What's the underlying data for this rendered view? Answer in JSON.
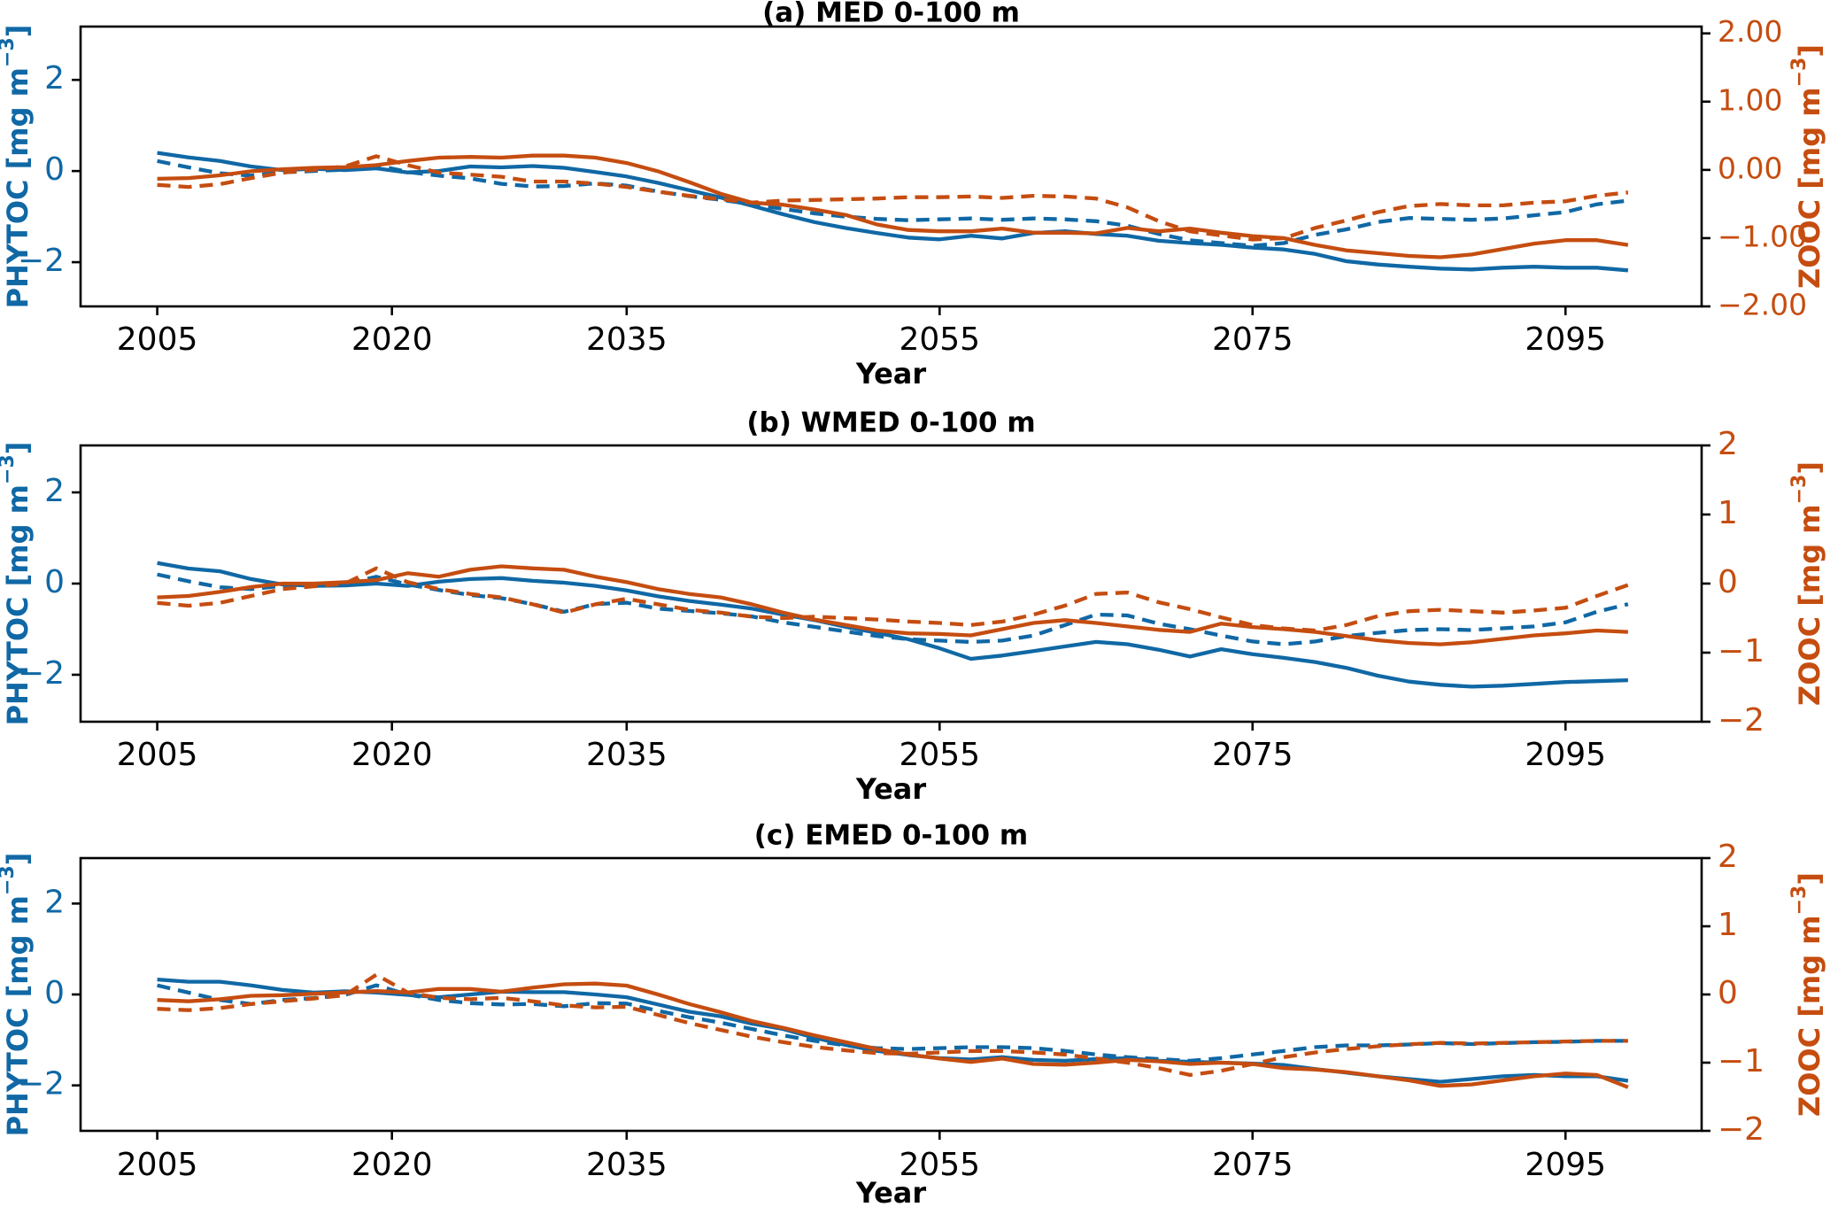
{
  "figure": {
    "background": "#ffffff",
    "xlabel": "Year",
    "ylabel_left": {
      "pre": "PHYTOC [mg m",
      "sup": "−3",
      "post": "]",
      "full": "PHYTOC [mg m^-3]"
    },
    "ylabel_right": {
      "pre": "ZOOC [mg m",
      "sup": "−3",
      "post": "]",
      "full": "ZOOC [mg m^-3]"
    }
  },
  "colors": {
    "phytoc_blue": "#1068a5",
    "zooc_orange": "#c54d10",
    "axis_black": "#000000",
    "background": "#ffffff"
  },
  "chart_data": {
    "type": "line",
    "x_years": [
      2005,
      2007,
      2009,
      2011,
      2013,
      2015,
      2017,
      2019,
      2021,
      2023,
      2025,
      2027,
      2029,
      2031,
      2033,
      2035,
      2037,
      2039,
      2041,
      2043,
      2045,
      2047,
      2049,
      2051,
      2053,
      2055,
      2057,
      2059,
      2061,
      2063,
      2065,
      2067,
      2069,
      2071,
      2073,
      2075,
      2077,
      2079,
      2081,
      2083,
      2085,
      2087,
      2089,
      2091,
      2093,
      2095,
      2097,
      2099
    ],
    "xlim": [
      2000.1,
      2103.7
    ],
    "xticks": {
      "values": [
        2005,
        2020,
        2035,
        2055,
        2075,
        2095
      ],
      "labels": [
        "2005",
        "2020",
        "2035",
        "2055",
        "2075",
        "2095"
      ]
    },
    "legend": "none",
    "grid": false,
    "panels": [
      {
        "id": "a",
        "title": "(a) MED 0-100 m",
        "xlabel": "Year",
        "ylim_left": [
          -2.97,
          3.17
        ],
        "ylim_right": [
          -2.0,
          2.1
        ],
        "yticks_left": {
          "values": [
            2,
            0,
            -2
          ],
          "labels": [
            "2",
            "0",
            "−2"
          ]
        },
        "yticks_right": {
          "values": [
            2,
            1,
            0,
            -1,
            -2
          ],
          "labels": [
            "2.00",
            "1.00",
            "0.00",
            "−1.00",
            "−2.00"
          ]
        },
        "series": [
          {
            "name": "phytoc_solid",
            "axis": "left",
            "style": "solid",
            "color": "phytoc_blue",
            "values": [
              0.4,
              0.3,
              0.22,
              0.1,
              0.02,
              0.05,
              0.02,
              0.06,
              -0.03,
              0.0,
              0.1,
              0.08,
              0.11,
              0.07,
              -0.02,
              -0.12,
              -0.26,
              -0.42,
              -0.58,
              -0.76,
              -0.95,
              -1.12,
              -1.25,
              -1.36,
              -1.46,
              -1.5,
              -1.42,
              -1.48,
              -1.36,
              -1.32,
              -1.38,
              -1.42,
              -1.53,
              -1.58,
              -1.62,
              -1.68,
              -1.72,
              -1.82,
              -1.98,
              -2.05,
              -2.1,
              -2.14,
              -2.16,
              -2.12,
              -2.1,
              -2.12,
              -2.12,
              -2.18
            ]
          },
          {
            "name": "phytoc_dashed",
            "axis": "left",
            "style": "dashed",
            "color": "phytoc_blue",
            "values": [
              0.22,
              0.08,
              -0.05,
              -0.1,
              -0.03,
              0.0,
              0.03,
              0.13,
              -0.02,
              -0.1,
              -0.16,
              -0.28,
              -0.34,
              -0.33,
              -0.27,
              -0.32,
              -0.45,
              -0.55,
              -0.63,
              -0.73,
              -0.83,
              -0.93,
              -1.0,
              -1.05,
              -1.08,
              -1.06,
              -1.04,
              -1.07,
              -1.04,
              -1.06,
              -1.1,
              -1.2,
              -1.38,
              -1.52,
              -1.58,
              -1.64,
              -1.58,
              -1.4,
              -1.28,
              -1.12,
              -1.03,
              -1.05,
              -1.07,
              -1.04,
              -0.97,
              -0.9,
              -0.73,
              -0.65
            ]
          },
          {
            "name": "zooc_solid",
            "axis": "right",
            "style": "solid",
            "color": "zooc_orange",
            "values": [
              -0.13,
              -0.12,
              -0.08,
              -0.02,
              0.01,
              0.03,
              0.04,
              0.07,
              0.13,
              0.18,
              0.19,
              0.18,
              0.21,
              0.21,
              0.18,
              0.1,
              -0.02,
              -0.18,
              -0.35,
              -0.48,
              -0.51,
              -0.58,
              -0.66,
              -0.8,
              -0.88,
              -0.9,
              -0.9,
              -0.86,
              -0.92,
              -0.92,
              -0.93,
              -0.85,
              -0.9,
              -0.86,
              -0.92,
              -0.97,
              -1.0,
              -1.1,
              -1.18,
              -1.22,
              -1.26,
              -1.28,
              -1.24,
              -1.16,
              -1.08,
              -1.03,
              -1.03,
              -1.1
            ]
          },
          {
            "name": "zooc_dashed",
            "axis": "right",
            "style": "dashed",
            "color": "zooc_orange",
            "values": [
              -0.22,
              -0.25,
              -0.21,
              -0.12,
              -0.04,
              0.0,
              0.05,
              0.2,
              0.07,
              -0.04,
              -0.07,
              -0.1,
              -0.17,
              -0.17,
              -0.2,
              -0.25,
              -0.32,
              -0.38,
              -0.43,
              -0.48,
              -0.45,
              -0.44,
              -0.43,
              -0.42,
              -0.4,
              -0.4,
              -0.39,
              -0.41,
              -0.38,
              -0.39,
              -0.42,
              -0.55,
              -0.75,
              -0.9,
              -0.96,
              -1.02,
              -1.0,
              -0.85,
              -0.74,
              -0.62,
              -0.53,
              -0.5,
              -0.52,
              -0.52,
              -0.48,
              -0.46,
              -0.38,
              -0.33
            ]
          }
        ]
      },
      {
        "id": "b",
        "title": "(b) WMED 0-100 m",
        "xlabel": "Year",
        "ylim_left": [
          -3.03,
          3.03
        ],
        "ylim_right": [
          -2.0,
          2.0
        ],
        "yticks_left": {
          "values": [
            2,
            0,
            -2
          ],
          "labels": [
            "2",
            "0",
            "−2"
          ]
        },
        "yticks_right": {
          "values": [
            2,
            1,
            0,
            -1,
            -2
          ],
          "labels": [
            "2",
            "1",
            "0",
            "−1",
            "−2"
          ]
        },
        "series": [
          {
            "name": "phytoc_solid",
            "axis": "left",
            "style": "solid",
            "color": "phytoc_blue",
            "values": [
              0.45,
              0.33,
              0.27,
              0.1,
              -0.02,
              -0.05,
              -0.04,
              0.0,
              -0.05,
              0.04,
              0.1,
              0.12,
              0.06,
              0.02,
              -0.05,
              -0.15,
              -0.28,
              -0.38,
              -0.46,
              -0.55,
              -0.68,
              -0.8,
              -0.95,
              -1.08,
              -1.22,
              -1.42,
              -1.65,
              -1.58,
              -1.48,
              -1.38,
              -1.28,
              -1.33,
              -1.45,
              -1.6,
              -1.44,
              -1.55,
              -1.63,
              -1.72,
              -1.85,
              -2.02,
              -2.15,
              -2.22,
              -2.26,
              -2.24,
              -2.2,
              -2.16,
              -2.14,
              -2.12
            ]
          },
          {
            "name": "phytoc_dashed",
            "axis": "left",
            "style": "dashed",
            "color": "phytoc_blue",
            "values": [
              0.2,
              0.05,
              -0.08,
              -0.12,
              -0.05,
              -0.03,
              0.0,
              0.15,
              -0.02,
              -0.14,
              -0.25,
              -0.32,
              -0.45,
              -0.62,
              -0.45,
              -0.42,
              -0.55,
              -0.6,
              -0.65,
              -0.72,
              -0.85,
              -0.95,
              -1.05,
              -1.15,
              -1.22,
              -1.25,
              -1.28,
              -1.25,
              -1.14,
              -0.91,
              -0.68,
              -0.7,
              -0.88,
              -1.0,
              -1.14,
              -1.27,
              -1.33,
              -1.27,
              -1.15,
              -1.08,
              -1.02,
              -1.0,
              -1.02,
              -0.98,
              -0.94,
              -0.85,
              -0.62,
              -0.45
            ]
          },
          {
            "name": "zooc_solid",
            "axis": "right",
            "style": "solid",
            "color": "zooc_orange",
            "values": [
              -0.2,
              -0.18,
              -0.12,
              -0.05,
              0.0,
              0.0,
              0.02,
              0.05,
              0.15,
              0.1,
              0.2,
              0.25,
              0.22,
              0.2,
              0.1,
              0.02,
              -0.08,
              -0.15,
              -0.2,
              -0.3,
              -0.42,
              -0.52,
              -0.6,
              -0.68,
              -0.72,
              -0.73,
              -0.75,
              -0.66,
              -0.57,
              -0.53,
              -0.57,
              -0.62,
              -0.67,
              -0.7,
              -0.58,
              -0.63,
              -0.66,
              -0.7,
              -0.76,
              -0.82,
              -0.86,
              -0.88,
              -0.85,
              -0.8,
              -0.75,
              -0.72,
              -0.68,
              -0.7
            ]
          },
          {
            "name": "zooc_dashed",
            "axis": "right",
            "style": "dashed",
            "color": "zooc_orange",
            "values": [
              -0.28,
              -0.32,
              -0.28,
              -0.18,
              -0.08,
              -0.04,
              0.0,
              0.22,
              0.02,
              -0.08,
              -0.15,
              -0.2,
              -0.3,
              -0.42,
              -0.3,
              -0.22,
              -0.3,
              -0.38,
              -0.42,
              -0.48,
              -0.5,
              -0.48,
              -0.5,
              -0.52,
              -0.55,
              -0.57,
              -0.6,
              -0.55,
              -0.45,
              -0.32,
              -0.15,
              -0.13,
              -0.27,
              -0.37,
              -0.49,
              -0.6,
              -0.65,
              -0.68,
              -0.6,
              -0.47,
              -0.4,
              -0.38,
              -0.4,
              -0.42,
              -0.39,
              -0.35,
              -0.18,
              -0.02
            ]
          }
        ]
      },
      {
        "id": "c",
        "title": "(c) EMED 0-100 m",
        "xlabel": "Year",
        "ylim_left": [
          -3.0,
          3.0
        ],
        "ylim_right": [
          -2.0,
          2.0
        ],
        "yticks_left": {
          "values": [
            2,
            0,
            -2
          ],
          "labels": [
            "2",
            "0",
            "−2"
          ]
        },
        "yticks_right": {
          "values": [
            2,
            1,
            0,
            -1,
            -2
          ],
          "labels": [
            "2",
            "1",
            "0",
            "−1",
            "−2"
          ]
        },
        "series": [
          {
            "name": "phytoc_solid",
            "axis": "left",
            "style": "solid",
            "color": "phytoc_blue",
            "values": [
              0.33,
              0.28,
              0.28,
              0.2,
              0.1,
              0.04,
              0.07,
              0.04,
              -0.01,
              -0.06,
              0.0,
              0.06,
              0.05,
              0.05,
              0.0,
              -0.06,
              -0.22,
              -0.38,
              -0.48,
              -0.64,
              -0.76,
              -0.95,
              -1.11,
              -1.24,
              -1.33,
              -1.4,
              -1.43,
              -1.38,
              -1.44,
              -1.46,
              -1.42,
              -1.4,
              -1.46,
              -1.48,
              -1.5,
              -1.52,
              -1.55,
              -1.64,
              -1.72,
              -1.8,
              -1.86,
              -1.92,
              -1.86,
              -1.8,
              -1.77,
              -1.8,
              -1.8,
              -1.9
            ]
          },
          {
            "name": "phytoc_dashed",
            "axis": "left",
            "style": "dashed",
            "color": "phytoc_blue",
            "values": [
              0.2,
              0.04,
              -0.12,
              -0.21,
              -0.12,
              -0.08,
              -0.01,
              0.2,
              0.0,
              -0.12,
              -0.19,
              -0.22,
              -0.21,
              -0.26,
              -0.19,
              -0.2,
              -0.36,
              -0.5,
              -0.62,
              -0.76,
              -0.9,
              -1.02,
              -1.12,
              -1.18,
              -1.2,
              -1.18,
              -1.16,
              -1.16,
              -1.18,
              -1.24,
              -1.32,
              -1.38,
              -1.42,
              -1.46,
              -1.4,
              -1.32,
              -1.24,
              -1.16,
              -1.12,
              -1.12,
              -1.1,
              -1.07,
              -1.09,
              -1.07,
              -1.05,
              -1.04,
              -1.02,
              -1.02
            ]
          },
          {
            "name": "zooc_solid",
            "axis": "right",
            "style": "solid",
            "color": "zooc_orange",
            "values": [
              -0.08,
              -0.1,
              -0.07,
              -0.02,
              -0.01,
              0.01,
              0.03,
              0.05,
              0.03,
              0.08,
              0.08,
              0.04,
              0.1,
              0.15,
              0.16,
              0.13,
              0.0,
              -0.14,
              -0.26,
              -0.39,
              -0.49,
              -0.6,
              -0.7,
              -0.8,
              -0.88,
              -0.94,
              -0.99,
              -0.94,
              -1.02,
              -1.03,
              -1.0,
              -0.96,
              -0.98,
              -1.02,
              -1.0,
              -1.02,
              -1.08,
              -1.1,
              -1.14,
              -1.2,
              -1.26,
              -1.34,
              -1.32,
              -1.26,
              -1.2,
              -1.16,
              -1.18,
              -1.36
            ]
          },
          {
            "name": "zooc_dashed",
            "axis": "right",
            "style": "dashed",
            "color": "zooc_orange",
            "values": [
              -0.21,
              -0.23,
              -0.2,
              -0.14,
              -0.1,
              -0.06,
              -0.01,
              0.29,
              0.03,
              -0.05,
              -0.07,
              -0.05,
              -0.1,
              -0.16,
              -0.19,
              -0.18,
              -0.3,
              -0.42,
              -0.52,
              -0.62,
              -0.7,
              -0.77,
              -0.82,
              -0.86,
              -0.87,
              -0.85,
              -0.83,
              -0.83,
              -0.85,
              -0.88,
              -0.94,
              -1.0,
              -1.08,
              -1.18,
              -1.12,
              -1.02,
              -0.92,
              -0.85,
              -0.8,
              -0.76,
              -0.73,
              -0.71,
              -0.72,
              -0.71,
              -0.7,
              -0.69,
              -0.68,
              -0.68
            ]
          }
        ]
      }
    ]
  }
}
